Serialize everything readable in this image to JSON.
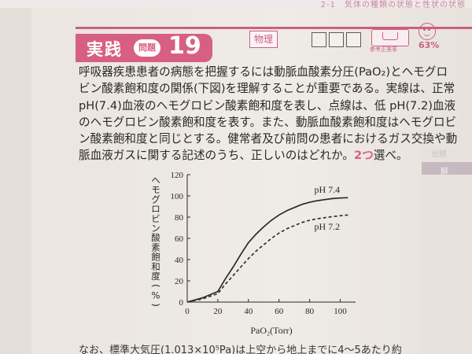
{
  "running_head": "2-1　気体の種類の状態と性状の状態",
  "header": {
    "badge_label": "実践",
    "problem_label": "問題",
    "problem_number": "19",
    "subject": "物理",
    "reference_label": "参考正答率",
    "correct_rate": "63%"
  },
  "question": {
    "lines": [
      "呼吸器疾患患者の病態を把握するには動脈血酸素分圧(PaO₂)とヘモグロ",
      "ビン酸素飽和度の関係(下図)を理解することが重要である。実線は、正常",
      "pH(7.4)血液のヘモグロビン酸素飽和度を表し、点線は、低 pH(7.2)血液",
      "のヘモグロビン酸素飽和度を表す。また、動脈血酸素飽和度はヘモグロビ",
      "ン酸素飽和度と同じとする。健常者及び前問の患者におけるガス交換や動"
    ],
    "last_line_before": "脈血液ガスに関する記述のうち、正しいのはどれか。",
    "answer_count": "2つ",
    "last_line_after": "選べ。"
  },
  "chart_data": {
    "type": "line",
    "xlabel": "PaO₂(Torr)",
    "ylabel": "ヘモグロビン酸素飽和度(%)",
    "xlim": [
      0,
      110
    ],
    "ylim": [
      0,
      120
    ],
    "x_ticks": [
      "0",
      "20",
      "40",
      "60",
      "80",
      "100"
    ],
    "y_ticks": [
      "0",
      "20",
      "40",
      "60",
      "80",
      "100",
      "120"
    ],
    "grid": false,
    "series": [
      {
        "name": "pH 7.4",
        "style": "solid",
        "x": [
          0,
          10,
          20,
          25,
          30,
          35,
          40,
          45,
          50,
          55,
          60,
          65,
          70,
          75,
          80,
          85,
          90,
          95,
          100,
          105
        ],
        "y": [
          0,
          4,
          10,
          22,
          33,
          45,
          56,
          64,
          71,
          77,
          82,
          86,
          89,
          92,
          94,
          95.5,
          96.5,
          97.5,
          98,
          98.3
        ]
      },
      {
        "name": "pH 7.2",
        "style": "dashed",
        "x": [
          0,
          10,
          20,
          25,
          30,
          35,
          40,
          45,
          50,
          55,
          60,
          65,
          70,
          75,
          80,
          85,
          90,
          95,
          100,
          105
        ],
        "y": [
          0,
          3,
          8,
          17,
          25,
          33,
          41,
          48,
          54,
          60,
          65,
          69,
          72,
          75,
          77,
          78.5,
          79.5,
          80.5,
          81.3,
          82
        ]
      }
    ]
  },
  "footer_fragment": "なお、標準大気圧(1.013×10⁵Pa)は上空から地上までに4〜5あたり約",
  "colors": {
    "accent": "#d85f84",
    "text": "#2b2827",
    "paper": "#ece7e2"
  }
}
